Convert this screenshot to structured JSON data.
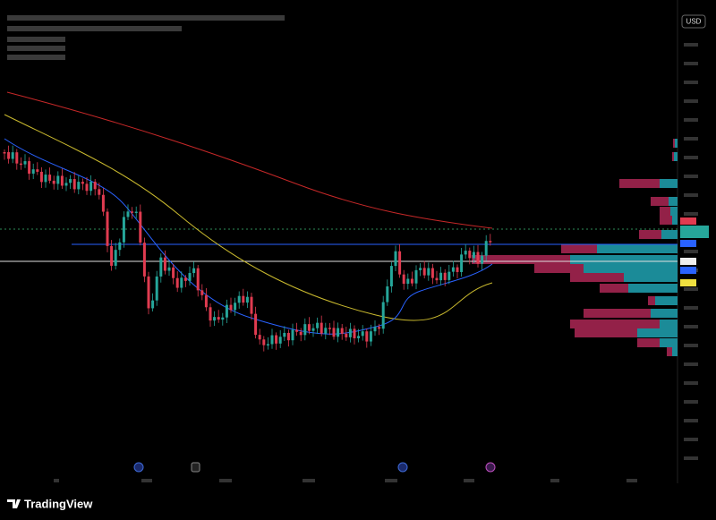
{
  "header": {
    "brand": "TradingView"
  },
  "price_axis": {
    "currency": "USD"
  }
}
